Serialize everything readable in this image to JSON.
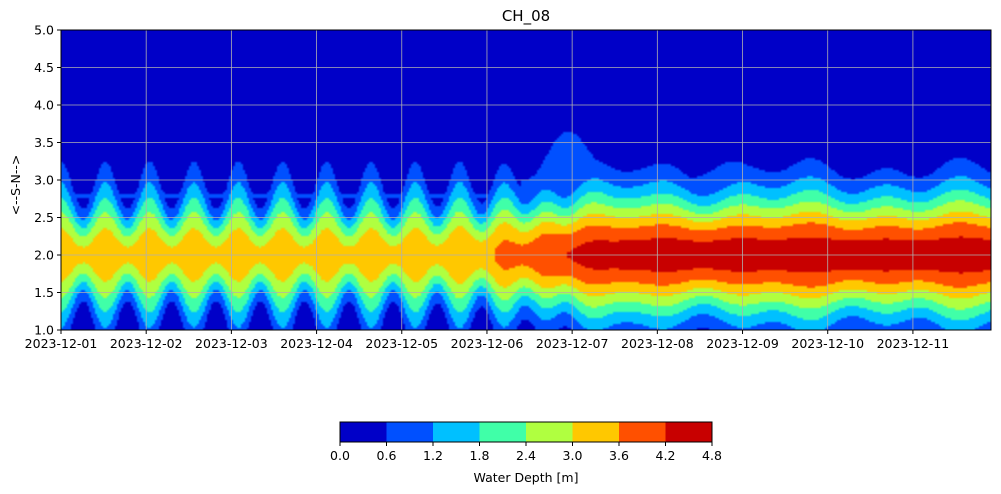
{
  "chart_data": {
    "type": "heatmap",
    "title": "CH_08",
    "xlabel": "",
    "ylabel": "<--S-N-->",
    "x_ticks": [
      "2023-12-01",
      "2023-12-02",
      "2023-12-03",
      "2023-12-04",
      "2023-12-05",
      "2023-12-06",
      "2023-12-07",
      "2023-12-08",
      "2023-12-09",
      "2023-12-10",
      "2023-12-11"
    ],
    "x_range": [
      "2023-12-01T00:00",
      "2023-12-11T22:00"
    ],
    "y_ticks": [
      "1.0",
      "1.5",
      "2.0",
      "2.5",
      "3.0",
      "3.5",
      "4.0",
      "4.5",
      "5.0"
    ],
    "ylim": [
      1.0,
      5.0
    ],
    "grid": true,
    "colorbar": {
      "label": "Water Depth [m]",
      "levels": [
        0.0,
        0.6,
        1.2,
        1.8,
        2.4,
        3.0,
        3.6,
        4.2,
        4.8
      ],
      "tick_labels": [
        "0.0",
        "0.6",
        "1.2",
        "1.8",
        "2.4",
        "3.0",
        "3.6",
        "4.2",
        "4.8"
      ],
      "colors": [
        "#0000c8",
        "#0050ff",
        "#00c0ff",
        "#40ffa8",
        "#b0ff40",
        "#ffc800",
        "#ff5000",
        "#c80000"
      ],
      "placement": "bottom"
    },
    "depth_profile": {
      "description_units": "days since 2023-12-01, y in axis units, depth in m",
      "center_y": 2.0,
      "peak_depth_start": 3.3,
      "peak_depth_late": 4.5,
      "transition_day": 5.5,
      "oscillation_period_days": 0.52,
      "envelope_top_y_late": 3.0
    }
  }
}
